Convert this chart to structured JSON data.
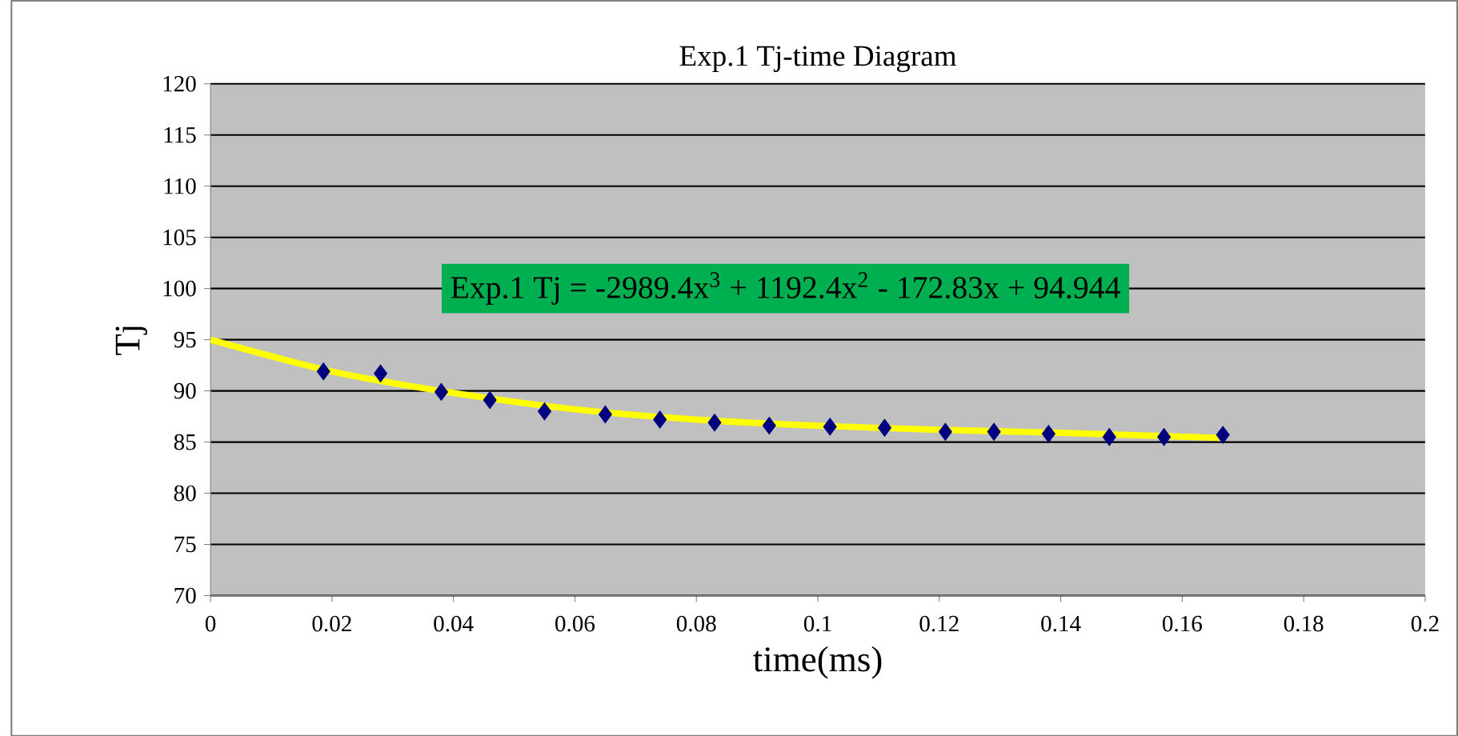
{
  "chart_data": {
    "type": "scatter",
    "title": "Exp.1 Tj-time Diagram",
    "xlabel": "time(ms)",
    "ylabel": "Tj",
    "xlim": [
      0,
      0.2
    ],
    "xticks": [
      0,
      0.02,
      0.04,
      0.06,
      0.08,
      0.1,
      0.12,
      0.14,
      0.16,
      0.18,
      0.2
    ],
    "ylim": [
      70,
      120
    ],
    "yticks": [
      70,
      75,
      80,
      85,
      90,
      95,
      100,
      105,
      110,
      115,
      120
    ],
    "grid": "y",
    "marker": "diamond",
    "annotations": [
      "Exp.1 Tj = -2989.4x$^{3}$ + 1192.4x$^{2}$ - 172.83x + 94.944"
    ],
    "series": [
      {
        "color": "#000080",
        "x": [
          0.0186,
          0.028,
          0.038,
          0.046,
          0.055,
          0.065,
          0.074,
          0.083,
          0.092,
          0.102,
          0.111,
          0.121,
          0.129,
          0.138,
          0.148,
          0.157,
          0.1667
        ],
        "values": [
          91.9,
          91.7,
          89.9,
          89.1,
          88.0,
          87.7,
          87.2,
          86.9,
          86.6,
          86.5,
          86.4,
          86.0,
          86.0,
          85.8,
          85.5,
          85.5,
          85.7
        ]
      },
      {
        "type": "line",
        "color": "#ffff00",
        "marker": "none",
        "x": [
          0,
          0.02,
          0.04,
          0.06,
          0.08,
          0.1,
          0.12,
          0.14,
          0.1667
        ],
        "values": [
          95.0,
          91.9,
          89.8,
          88.2,
          87.2,
          86.6,
          86.2,
          85.9,
          85.4
        ]
      }
    ]
  }
}
